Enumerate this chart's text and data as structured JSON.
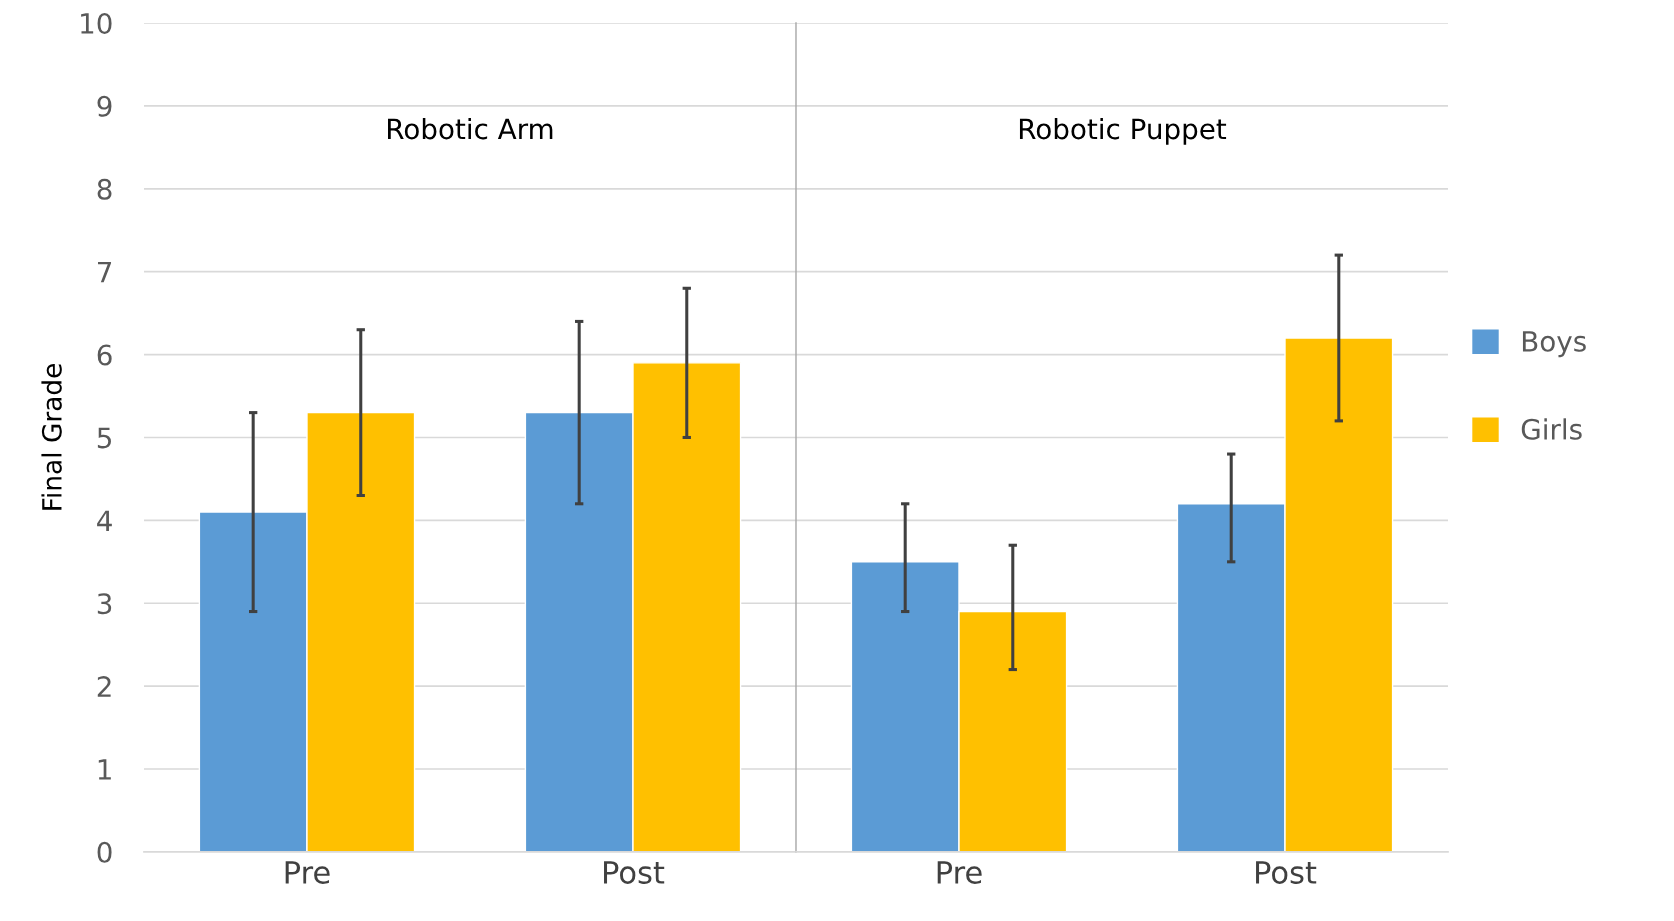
{
  "chart_data": [
    {
      "type": "bar",
      "title": "Robotic Arm",
      "ylabel": "Final Grade",
      "categories": [
        "Pre",
        "Post"
      ],
      "ylim": [
        0,
        10
      ],
      "yticks": [
        0,
        1,
        2,
        3,
        4,
        5,
        6,
        7,
        8,
        9,
        10
      ],
      "grid": "y",
      "legend": false,
      "series": [
        {
          "color": "#5b9bd5",
          "values": [
            4.1,
            5.3
          ],
          "errors": [
            [
              2.9,
              5.3
            ],
            [
              4.2,
              6.4
            ]
          ]
        },
        {
          "color": "#ffc000",
          "values": [
            5.3,
            5.9
          ],
          "errors": [
            [
              4.3,
              6.3
            ],
            [
              5.0,
              6.8
            ]
          ]
        }
      ]
    },
    {
      "type": "bar",
      "title": "Robotic Puppet",
      "categories": [
        "Pre",
        "Post"
      ],
      "ylim": [
        0,
        10
      ],
      "yticks": [
        0,
        1,
        2,
        3,
        4,
        5,
        6,
        7,
        8,
        9,
        10
      ],
      "grid": "y",
      "legend": "right",
      "tick_labels": "x",
      "series": [
        {
          "name": "Boys",
          "color": "#5b9bd5",
          "values": [
            3.5,
            4.2
          ],
          "errors": [
            [
              2.9,
              4.2
            ],
            [
              3.5,
              4.8
            ]
          ]
        },
        {
          "name": "Girls",
          "color": "#ffc000",
          "values": [
            2.9,
            6.2
          ],
          "errors": [
            [
              2.2,
              3.7
            ],
            [
              5.2,
              7.2
            ]
          ]
        }
      ]
    }
  ]
}
